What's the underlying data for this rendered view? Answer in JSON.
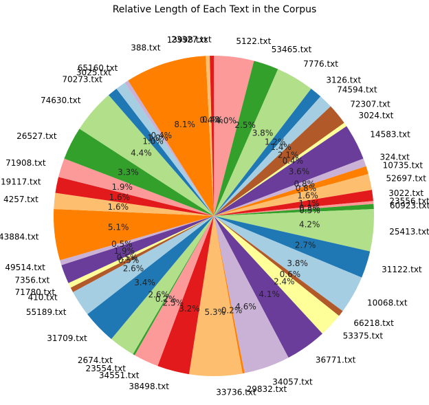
{
  "chart_data": {
    "type": "pie",
    "title": "Relative Length of Each Text in the Corpus",
    "center": [
      311,
      314
    ],
    "radius": 233,
    "order": "clockwise from top",
    "slices": [
      {
        "label": "5122.txt",
        "pct": 4.0,
        "color": "#fb9a99"
      },
      {
        "label": "53465.txt",
        "pct": 2.5,
        "color": "#33a02c"
      },
      {
        "label": "7776.txt",
        "pct": 3.8,
        "color": "#b2df8a"
      },
      {
        "label": "3126.txt",
        "pct": 1.2,
        "color": "#1f78b4"
      },
      {
        "label": "74594.txt",
        "pct": 1.4,
        "color": "#a6cee3"
      },
      {
        "label": "72307.txt",
        "pct": 2.1,
        "color": "#b15928"
      },
      {
        "label": "3024.txt",
        "pct": 0.4,
        "color": "#ffff99"
      },
      {
        "label": "14583.txt",
        "pct": 3.6,
        "color": "#6a3d9a"
      },
      {
        "label": "324.txt",
        "pct": 0.8,
        "color": "#cab2d6"
      },
      {
        "label": "10735.txt",
        "pct": 0.8,
        "color": "#ff7f00"
      },
      {
        "label": "52697.txt",
        "pct": 1.6,
        "color": "#fdbf6f"
      },
      {
        "label": "3022.txt",
        "pct": 1.1,
        "color": "#e31a1c"
      },
      {
        "label": "23556.txt",
        "pct": 0.3,
        "color": "#fb9a99"
      },
      {
        "label": "60923.txt",
        "pct": 0.5,
        "color": "#33a02c"
      },
      {
        "label": "25413.txt",
        "pct": 4.2,
        "color": "#b2df8a"
      },
      {
        "label": "31122.txt",
        "pct": 2.7,
        "color": "#1f78b4"
      },
      {
        "label": "10068.txt",
        "pct": 3.8,
        "color": "#a6cee3"
      },
      {
        "label": "66218.txt",
        "pct": 0.6,
        "color": "#b15928"
      },
      {
        "label": "53375.txt",
        "pct": 2.4,
        "color": "#ffff99"
      },
      {
        "label": "36771.txt",
        "pct": 4.1,
        "color": "#6a3d9a"
      },
      {
        "label": "34057.txt",
        "pct": 4.6,
        "color": "#cab2d6"
      },
      {
        "label": "29832.txt",
        "pct": 0.2,
        "color": "#ff7f00"
      },
      {
        "label": "33736.txt",
        "pct": 5.3,
        "color": "#fdbf6f"
      },
      {
        "label": "38498.txt",
        "pct": 3.2,
        "color": "#e31a1c"
      },
      {
        "label": "34551.txt",
        "pct": 2.5,
        "color": "#fb9a99"
      },
      {
        "label": "23554.txt",
        "pct": 0.2,
        "color": "#33a02c"
      },
      {
        "label": "2674.txt",
        "pct": 2.6,
        "color": "#b2df8a"
      },
      {
        "label": "31709.txt",
        "pct": 3.4,
        "color": "#1f78b4"
      },
      {
        "label": "55189.txt",
        "pct": 2.6,
        "color": "#a6cee3"
      },
      {
        "label": "410.txt",
        "pct": 0.5,
        "color": "#b15928"
      },
      {
        "label": "71780.txt",
        "pct": 0.5,
        "color": "#ffff99"
      },
      {
        "label": "7356.txt",
        "pct": 1.9,
        "color": "#6a3d9a"
      },
      {
        "label": "49514.txt",
        "pct": 0.5,
        "color": "#cab2d6"
      },
      {
        "label": "43884.txt",
        "pct": 5.1,
        "color": "#ff7f00"
      },
      {
        "label": "4257.txt",
        "pct": 1.6,
        "color": "#fdbf6f"
      },
      {
        "label": "19117.txt",
        "pct": 1.6,
        "color": "#e31a1c"
      },
      {
        "label": "71908.txt",
        "pct": 1.9,
        "color": "#fb9a99"
      },
      {
        "label": "26527.txt",
        "pct": 3.3,
        "color": "#33a02c"
      },
      {
        "label": "74630.txt",
        "pct": 4.4,
        "color": "#b2df8a"
      },
      {
        "label": "70273.txt",
        "pct": 1.0,
        "color": "#1f78b4"
      },
      {
        "label": "3025.txt",
        "pct": 1.0,
        "color": "#a6cee3"
      },
      {
        "label": "65160.txt",
        "pct": 0.4,
        "color": "#cab2d6"
      },
      {
        "label": "388.txt",
        "pct": 8.1,
        "color": "#ff7f00"
      },
      {
        "label": "13998.txt",
        "pct": 0.4,
        "color": "#fdbf6f"
      },
      {
        "label": "23327.txt",
        "pct": 0.4,
        "color": "#e31a1c"
      }
    ]
  }
}
